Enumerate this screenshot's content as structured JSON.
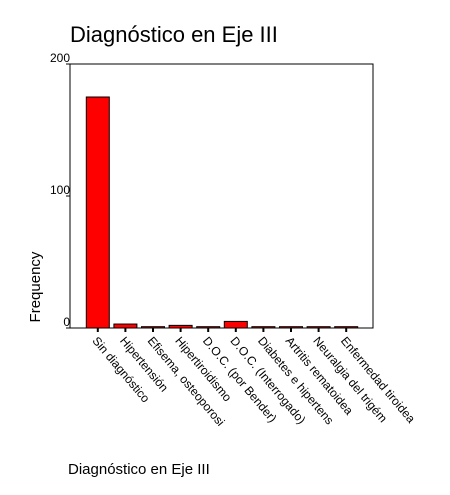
{
  "chart_data": {
    "type": "bar",
    "title": "Diagnóstico en Eje III",
    "xlabel": "Diagnóstico en Eje III",
    "ylabel": "Frequency",
    "ylim": [
      0,
      200
    ],
    "yticks": [
      "0",
      "100",
      "200"
    ],
    "categories": [
      "Sin diagnóstico",
      "Hipertensión",
      "Efisema, osteoporosi",
      "Hipertiroidismo",
      "D.O.C. (por Bender)",
      "D.O.C. (Interrogado)",
      "Diabetes e hipertens",
      "Artritis rematoidea",
      "Neuralgia del trigém",
      "Enfermedad tiroidea"
    ],
    "values": [
      175,
      3,
      1,
      2,
      1,
      5,
      1,
      1,
      1,
      1
    ],
    "bar_color": "#ff0000",
    "grid": false,
    "legend": "none"
  }
}
